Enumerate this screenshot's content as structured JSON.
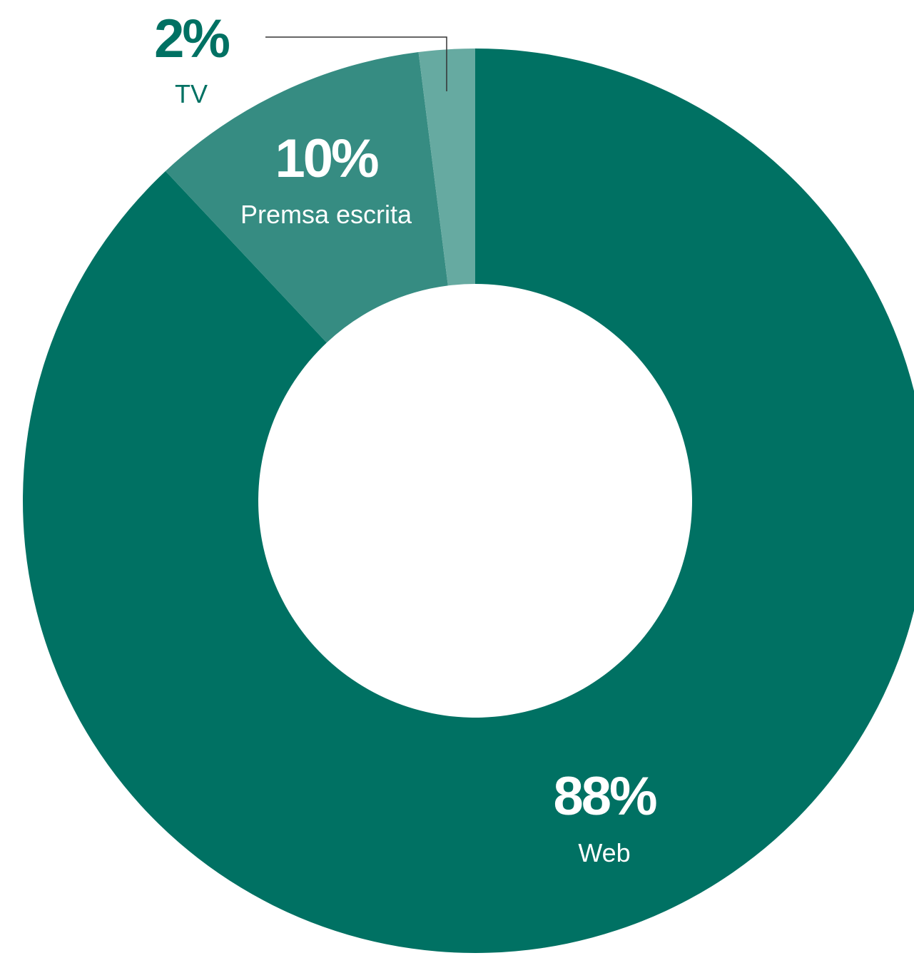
{
  "chart_data": {
    "type": "pie",
    "donut": true,
    "slices": [
      {
        "label": "Web",
        "value": 88,
        "display": "88%",
        "color": "#007163"
      },
      {
        "label": "Premsa escrita",
        "value": 10,
        "display": "10%",
        "color": "#368C82"
      },
      {
        "label": "TV",
        "value": 2,
        "display": "2%",
        "color": "#66AAA1"
      }
    ],
    "colors": {
      "label_inside": "#FFFFFF",
      "label_outside": "#007163",
      "leader_line": "#333333"
    }
  }
}
